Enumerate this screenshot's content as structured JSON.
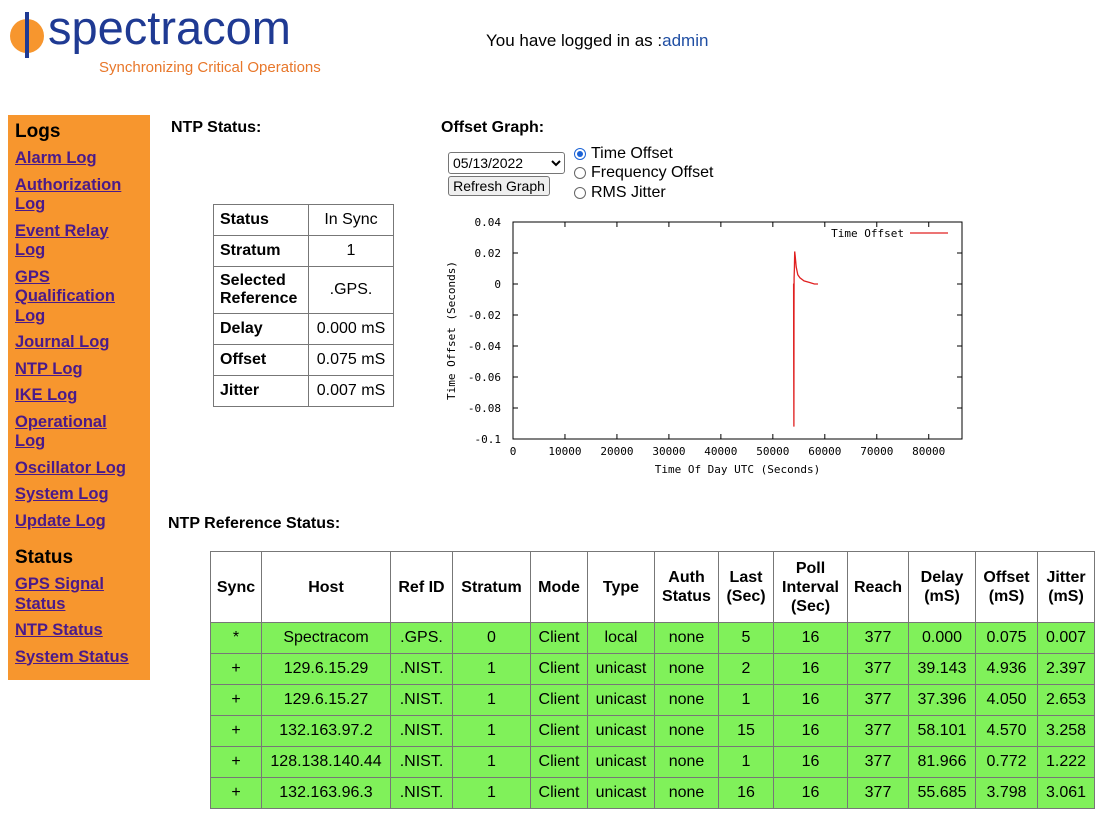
{
  "logo": {
    "brand": "spectracom",
    "tagline": "Synchronizing Critical Operations"
  },
  "login": {
    "prefix": "You have logged in as :",
    "user": "admin"
  },
  "sidebar": {
    "logs_heading": "Logs",
    "logs": [
      "Alarm Log",
      "Authorization Log",
      "Event Relay Log",
      "GPS Qualification Log",
      "Journal Log",
      "NTP Log",
      "IKE Log",
      "Operational Log",
      "Oscillator Log",
      "System Log",
      "Update Log"
    ],
    "status_heading": "Status",
    "status": [
      "GPS Signal Status",
      "NTP Status",
      "System Status"
    ]
  },
  "ntp_status": {
    "title": "NTP Status:",
    "rows": [
      {
        "label": "Status",
        "value": "In Sync"
      },
      {
        "label": "Stratum",
        "value": "1"
      },
      {
        "label": "Selected Reference",
        "value": ".GPS."
      },
      {
        "label": "Delay",
        "value": "0.000 mS"
      },
      {
        "label": "Offset",
        "value": "0.075 mS"
      },
      {
        "label": "Jitter",
        "value": "0.007 mS"
      }
    ]
  },
  "offset_graph": {
    "title": "Offset Graph:",
    "date_value": "05/13/2022",
    "refresh_label": "Refresh Graph",
    "radios": [
      {
        "label": "Time Offset",
        "checked": true
      },
      {
        "label": "Frequency Offset",
        "checked": false
      },
      {
        "label": "RMS Jitter",
        "checked": false
      }
    ]
  },
  "chart_data": {
    "type": "line",
    "title": "",
    "xlabel": "Time Of Day UTC (Seconds)",
    "ylabel": "Time Offset (Seconds)",
    "xlim": [
      0,
      86400
    ],
    "ylim": [
      -0.1,
      0.04
    ],
    "x_ticks": [
      0,
      10000,
      20000,
      30000,
      40000,
      50000,
      60000,
      70000,
      80000
    ],
    "x_tick_labels": [
      "0",
      "10000",
      "20000",
      "30000",
      "40000",
      "50000",
      "60000",
      "70000",
      "80000"
    ],
    "y_ticks": [
      0.04,
      0.02,
      0,
      -0.02,
      -0.04,
      -0.06,
      -0.08,
      -0.1
    ],
    "y_tick_labels": [
      "0.04",
      "0.02",
      "0",
      "-0.02",
      "-0.04",
      "-0.06",
      "-0.08",
      "-0.1"
    ],
    "legend": "top-right",
    "grid": false,
    "series": [
      {
        "name": "Time Offset",
        "color": "#e02020",
        "x": [
          53900,
          54000,
          54020,
          54050,
          54080,
          54100,
          54140,
          54200,
          54300,
          54500,
          54800,
          55200,
          56000,
          57000,
          58000,
          58700
        ],
        "y": [
          0.0,
          0.0,
          -0.046,
          -0.092,
          -0.02,
          0.004,
          0.01,
          0.021,
          0.018,
          0.011,
          0.006,
          0.004,
          0.002,
          0.001,
          0.0,
          0.0
        ]
      }
    ]
  },
  "ref_status": {
    "title": "NTP Reference Status:",
    "headers": [
      "Sync",
      "Host",
      "Ref ID",
      "Stratum",
      "Mode",
      "Type",
      "Auth Status",
      "Last (Sec)",
      "Poll Interval (Sec)",
      "Reach",
      "Delay (mS)",
      "Offset (mS)",
      "Jitter (mS)"
    ],
    "rows": [
      [
        "*",
        "Spectracom",
        ".GPS.",
        "0",
        "Client",
        "local",
        "none",
        "5",
        "16",
        "377",
        "0.000",
        "0.075",
        "0.007"
      ],
      [
        "+",
        "129.6.15.29",
        ".NIST.",
        "1",
        "Client",
        "unicast",
        "none",
        "2",
        "16",
        "377",
        "39.143",
        "4.936",
        "2.397"
      ],
      [
        "+",
        "129.6.15.27",
        ".NIST.",
        "1",
        "Client",
        "unicast",
        "none",
        "1",
        "16",
        "377",
        "37.396",
        "4.050",
        "2.653"
      ],
      [
        "+",
        "132.163.97.2",
        ".NIST.",
        "1",
        "Client",
        "unicast",
        "none",
        "15",
        "16",
        "377",
        "58.101",
        "4.570",
        "3.258"
      ],
      [
        "+",
        "128.138.140.44",
        ".NIST.",
        "1",
        "Client",
        "unicast",
        "none",
        "1",
        "16",
        "377",
        "81.966",
        "0.772",
        "1.222"
      ],
      [
        "+",
        "132.163.96.3",
        ".NIST.",
        "1",
        "Client",
        "unicast",
        "none",
        "16",
        "16",
        "377",
        "55.685",
        "3.798",
        "3.061"
      ]
    ]
  }
}
